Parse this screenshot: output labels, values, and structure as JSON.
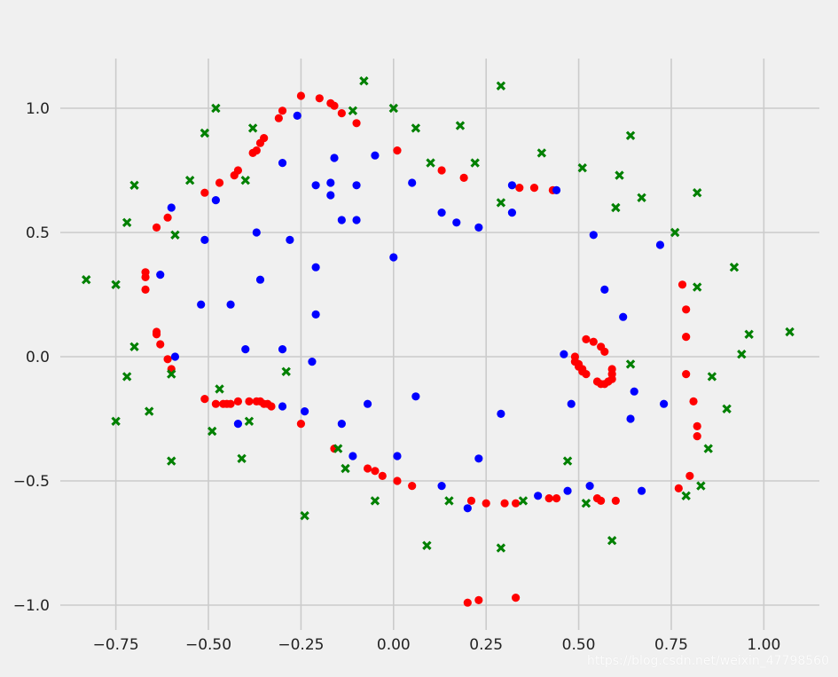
{
  "chart_data": {
    "type": "scatter",
    "xlim": [
      -0.9,
      1.15
    ],
    "ylim": [
      -1.1,
      1.2
    ],
    "grid": true,
    "xticks": [
      -0.75,
      -0.5,
      -0.25,
      0.0,
      0.25,
      0.5,
      0.75,
      1.0
    ],
    "xtick_labels": [
      "−0.75",
      "−0.50",
      "−0.25",
      "0.00",
      "0.25",
      "0.50",
      "0.75",
      "1.00"
    ],
    "yticks": [
      -1.0,
      -0.5,
      0.0,
      0.5,
      1.0
    ],
    "ytick_labels": [
      "−1.0",
      "−0.5",
      "0.0",
      "0.5",
      "1.0"
    ],
    "series": [
      {
        "color": "#ff0000",
        "marker": "circle",
        "points": [
          [
            -0.25,
            1.05
          ],
          [
            -0.2,
            1.04
          ],
          [
            -0.17,
            1.02
          ],
          [
            -0.16,
            1.01
          ],
          [
            -0.14,
            0.98
          ],
          [
            -0.1,
            0.94
          ],
          [
            -0.3,
            0.99
          ],
          [
            -0.31,
            0.96
          ],
          [
            -0.35,
            0.88
          ],
          [
            -0.36,
            0.86
          ],
          [
            -0.37,
            0.83
          ],
          [
            -0.38,
            0.82
          ],
          [
            -0.42,
            0.75
          ],
          [
            -0.43,
            0.73
          ],
          [
            -0.47,
            0.7
          ],
          [
            -0.51,
            0.66
          ],
          [
            -0.61,
            0.56
          ],
          [
            -0.64,
            0.52
          ],
          [
            -0.67,
            0.34
          ],
          [
            -0.67,
            0.32
          ],
          [
            -0.67,
            0.27
          ],
          [
            -0.64,
            0.1
          ],
          [
            -0.64,
            0.09
          ],
          [
            -0.63,
            0.05
          ],
          [
            -0.61,
            -0.01
          ],
          [
            -0.6,
            -0.05
          ],
          [
            -0.51,
            -0.17
          ],
          [
            -0.48,
            -0.19
          ],
          [
            -0.46,
            -0.19
          ],
          [
            -0.45,
            -0.19
          ],
          [
            -0.44,
            -0.19
          ],
          [
            -0.42,
            -0.18
          ],
          [
            -0.39,
            -0.18
          ],
          [
            -0.37,
            -0.18
          ],
          [
            -0.36,
            -0.18
          ],
          [
            -0.35,
            -0.19
          ],
          [
            -0.34,
            -0.19
          ],
          [
            -0.33,
            -0.2
          ],
          [
            -0.25,
            -0.27
          ],
          [
            -0.16,
            -0.37
          ],
          [
            -0.07,
            -0.45
          ],
          [
            -0.05,
            -0.46
          ],
          [
            -0.03,
            -0.48
          ],
          [
            0.01,
            -0.5
          ],
          [
            0.05,
            -0.52
          ],
          [
            0.21,
            -0.58
          ],
          [
            0.25,
            -0.59
          ],
          [
            0.3,
            -0.59
          ],
          [
            0.33,
            -0.59
          ],
          [
            0.42,
            -0.57
          ],
          [
            0.44,
            -0.57
          ],
          [
            0.55,
            -0.57
          ],
          [
            0.56,
            -0.58
          ],
          [
            0.6,
            -0.58
          ],
          [
            0.77,
            -0.53
          ],
          [
            0.8,
            -0.48
          ],
          [
            0.82,
            -0.32
          ],
          [
            0.82,
            -0.28
          ],
          [
            0.81,
            -0.18
          ],
          [
            0.79,
            -0.07
          ],
          [
            0.79,
            0.08
          ],
          [
            0.79,
            0.19
          ],
          [
            0.78,
            0.29
          ],
          [
            0.2,
            -0.99
          ],
          [
            0.23,
            -0.98
          ],
          [
            0.33,
            -0.97
          ],
          [
            0.01,
            0.83
          ],
          [
            0.13,
            0.75
          ],
          [
            0.19,
            0.72
          ],
          [
            0.34,
            0.68
          ],
          [
            0.38,
            0.68
          ],
          [
            0.43,
            0.67
          ],
          [
            0.52,
            0.07
          ],
          [
            0.54,
            0.06
          ],
          [
            0.56,
            0.04
          ],
          [
            0.57,
            0.02
          ],
          [
            0.49,
            0.0
          ],
          [
            0.49,
            -0.02
          ],
          [
            0.5,
            -0.03
          ],
          [
            0.5,
            -0.04
          ],
          [
            0.51,
            -0.05
          ],
          [
            0.51,
            -0.06
          ],
          [
            0.52,
            -0.07
          ],
          [
            0.55,
            -0.1
          ],
          [
            0.56,
            -0.11
          ],
          [
            0.57,
            -0.11
          ],
          [
            0.58,
            -0.1
          ],
          [
            0.59,
            -0.09
          ],
          [
            0.59,
            -0.07
          ],
          [
            0.59,
            -0.05
          ]
        ]
      },
      {
        "color": "#0000ff",
        "marker": "circle",
        "points": [
          [
            -0.26,
            0.97
          ],
          [
            -0.05,
            0.81
          ],
          [
            -0.16,
            0.8
          ],
          [
            -0.3,
            0.78
          ],
          [
            -0.48,
            0.63
          ],
          [
            -0.6,
            0.6
          ],
          [
            -0.21,
            0.69
          ],
          [
            -0.17,
            0.7
          ],
          [
            -0.17,
            0.65
          ],
          [
            -0.1,
            0.69
          ],
          [
            -0.1,
            0.55
          ],
          [
            -0.14,
            0.55
          ],
          [
            -0.37,
            0.5
          ],
          [
            -0.28,
            0.47
          ],
          [
            -0.51,
            0.47
          ],
          [
            -0.21,
            0.36
          ],
          [
            -0.63,
            0.33
          ],
          [
            -0.36,
            0.31
          ],
          [
            -0.52,
            0.21
          ],
          [
            -0.44,
            0.21
          ],
          [
            -0.21,
            0.17
          ],
          [
            -0.4,
            0.03
          ],
          [
            -0.3,
            0.03
          ],
          [
            -0.59,
            0.0
          ],
          [
            -0.22,
            -0.02
          ],
          [
            -0.3,
            -0.2
          ],
          [
            -0.24,
            -0.22
          ],
          [
            -0.42,
            -0.27
          ],
          [
            -0.14,
            -0.27
          ],
          [
            -0.07,
            -0.19
          ],
          [
            0.06,
            -0.16
          ],
          [
            -0.11,
            -0.4
          ],
          [
            0.01,
            -0.4
          ],
          [
            0.13,
            -0.52
          ],
          [
            0.23,
            -0.41
          ],
          [
            0.2,
            -0.61
          ],
          [
            0.29,
            -0.23
          ],
          [
            0.39,
            -0.56
          ],
          [
            0.47,
            -0.54
          ],
          [
            0.53,
            -0.52
          ],
          [
            0.48,
            -0.19
          ],
          [
            0.46,
            0.01
          ],
          [
            0.64,
            -0.25
          ],
          [
            0.65,
            -0.14
          ],
          [
            0.67,
            -0.54
          ],
          [
            0.73,
            -0.19
          ],
          [
            0.62,
            0.16
          ],
          [
            0.57,
            0.27
          ],
          [
            0.72,
            0.45
          ],
          [
            0.54,
            0.49
          ],
          [
            0.13,
            0.58
          ],
          [
            0.17,
            0.54
          ],
          [
            0.23,
            0.52
          ],
          [
            0.32,
            0.58
          ],
          [
            0.32,
            0.69
          ],
          [
            0.44,
            0.67
          ],
          [
            0.05,
            0.7
          ],
          [
            0.0,
            0.4
          ]
        ]
      },
      {
        "color": "#008000",
        "marker": "x-filled",
        "points": [
          [
            -0.08,
            1.11
          ],
          [
            -0.11,
            0.99
          ],
          [
            0.0,
            1.0
          ],
          [
            0.29,
            1.09
          ],
          [
            -0.48,
            1.0
          ],
          [
            -0.51,
            0.9
          ],
          [
            -0.38,
            0.92
          ],
          [
            0.06,
            0.92
          ],
          [
            0.18,
            0.93
          ],
          [
            0.4,
            0.82
          ],
          [
            0.64,
            0.89
          ],
          [
            0.1,
            0.78
          ],
          [
            0.22,
            0.78
          ],
          [
            0.51,
            0.76
          ],
          [
            0.61,
            0.73
          ],
          [
            0.67,
            0.64
          ],
          [
            0.82,
            0.66
          ],
          [
            0.6,
            0.6
          ],
          [
            0.29,
            0.62
          ],
          [
            0.76,
            0.5
          ],
          [
            0.92,
            0.36
          ],
          [
            0.82,
            0.28
          ],
          [
            1.07,
            0.1
          ],
          [
            0.96,
            0.09
          ],
          [
            0.94,
            0.01
          ],
          [
            0.64,
            -0.03
          ],
          [
            0.86,
            -0.08
          ],
          [
            0.9,
            -0.21
          ],
          [
            0.85,
            -0.37
          ],
          [
            0.83,
            -0.52
          ],
          [
            0.79,
            -0.56
          ],
          [
            0.47,
            -0.42
          ],
          [
            0.52,
            -0.59
          ],
          [
            0.59,
            -0.74
          ],
          [
            0.35,
            -0.58
          ],
          [
            0.29,
            -0.77
          ],
          [
            0.15,
            -0.58
          ],
          [
            0.09,
            -0.76
          ],
          [
            -0.05,
            -0.58
          ],
          [
            -0.13,
            -0.45
          ],
          [
            -0.15,
            -0.37
          ],
          [
            -0.24,
            -0.64
          ],
          [
            -0.29,
            -0.06
          ],
          [
            -0.39,
            -0.26
          ],
          [
            -0.41,
            -0.41
          ],
          [
            -0.47,
            -0.13
          ],
          [
            -0.49,
            -0.3
          ],
          [
            -0.6,
            -0.42
          ],
          [
            -0.6,
            -0.07
          ],
          [
            -0.66,
            -0.22
          ],
          [
            -0.72,
            -0.08
          ],
          [
            -0.7,
            0.04
          ],
          [
            -0.75,
            -0.26
          ],
          [
            -0.75,
            0.29
          ],
          [
            -0.83,
            0.31
          ],
          [
            -0.72,
            0.54
          ],
          [
            -0.7,
            0.69
          ],
          [
            -0.59,
            0.49
          ],
          [
            -0.55,
            0.71
          ],
          [
            -0.4,
            0.71
          ]
        ]
      }
    ]
  },
  "watermark": "https://blog.csdn.net/weixin_47798560"
}
